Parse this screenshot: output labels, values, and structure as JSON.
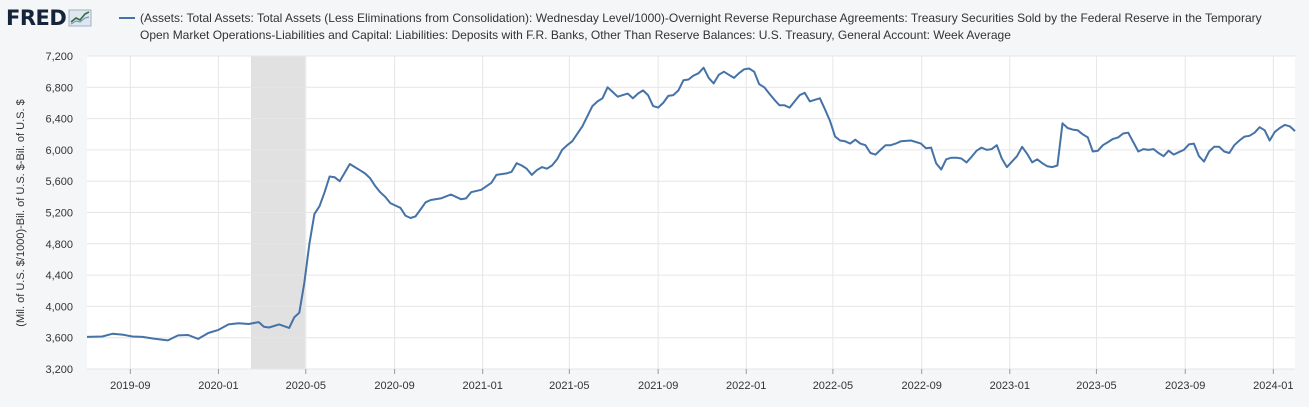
{
  "app": {
    "logo_text": "FRED"
  },
  "chart_data": {
    "type": "line",
    "title": "",
    "xlabel": "",
    "ylabel": "(Mil. of U.S. $/1000)-Bil. of U.S. $-Bil. of U.S. $",
    "ylim": [
      3200,
      7200
    ],
    "yticks": [
      3200,
      3600,
      4000,
      4400,
      4800,
      5200,
      5600,
      6000,
      6400,
      6800,
      7200
    ],
    "ytick_labels": [
      "3,200",
      "3,600",
      "4,000",
      "4,400",
      "4,800",
      "5,200",
      "5,600",
      "6,000",
      "6,400",
      "6,800",
      "7,200"
    ],
    "xlim": [
      "2019-07-03",
      "2024-01-31"
    ],
    "xticks": [
      "2019-09-01",
      "2020-01-01",
      "2020-05-01",
      "2020-09-01",
      "2021-01-01",
      "2021-05-01",
      "2021-09-01",
      "2022-01-01",
      "2022-05-01",
      "2022-09-01",
      "2023-01-01",
      "2023-05-01",
      "2023-09-01",
      "2024-01-01"
    ],
    "xtick_labels": [
      "2019-09",
      "2020-01",
      "2020-05",
      "2020-09",
      "2021-01",
      "2021-05",
      "2021-09",
      "2022-01",
      "2022-05",
      "2022-09",
      "2023-01",
      "2023-05",
      "2023-09",
      "2024-01"
    ],
    "grid": true,
    "legend_position": "top",
    "recession_shading": {
      "start": "2020-02-15",
      "end": "2020-04-30",
      "color": "#e1e1e1"
    },
    "colors": {
      "series": "#4572a7",
      "grid": "#e6e6e6",
      "plot_bg": "#ffffff",
      "recession": "#e1e1e1"
    },
    "series": [
      {
        "name": "(Assets: Total Assets: Total Assets (Less Eliminations from Consolidation): Wednesday Level/1000)-Overnight Reverse Repurchase Agreements: Treasury Securities Sold by the Federal Reserve in the Temporary Open Market Operations-Liabilities and Capital: Liabilities: Deposits with F.R. Banks, Other Than Reserve Balances: U.S. Treasury, General Account: Week Average",
        "points": [
          [
            "2019-07-03",
            3610
          ],
          [
            "2019-07-24",
            3615
          ],
          [
            "2019-08-07",
            3650
          ],
          [
            "2019-08-21",
            3640
          ],
          [
            "2019-09-04",
            3615
          ],
          [
            "2019-09-18",
            3610
          ],
          [
            "2019-10-02",
            3590
          ],
          [
            "2019-10-16",
            3575
          ],
          [
            "2019-10-23",
            3565
          ],
          [
            "2019-11-06",
            3630
          ],
          [
            "2019-11-20",
            3635
          ],
          [
            "2019-12-04",
            3585
          ],
          [
            "2019-12-18",
            3660
          ],
          [
            "2020-01-01",
            3700
          ],
          [
            "2020-01-15",
            3770
          ],
          [
            "2020-01-29",
            3785
          ],
          [
            "2020-02-12",
            3775
          ],
          [
            "2020-02-26",
            3800
          ],
          [
            "2020-03-04",
            3740
          ],
          [
            "2020-03-11",
            3730
          ],
          [
            "2020-03-25",
            3770
          ],
          [
            "2020-04-08",
            3725
          ],
          [
            "2020-04-15",
            3860
          ],
          [
            "2020-04-22",
            3920
          ],
          [
            "2020-04-29",
            4300
          ],
          [
            "2020-05-06",
            4800
          ],
          [
            "2020-05-13",
            5180
          ],
          [
            "2020-05-20",
            5280
          ],
          [
            "2020-05-27",
            5460
          ],
          [
            "2020-06-03",
            5660
          ],
          [
            "2020-06-10",
            5650
          ],
          [
            "2020-06-17",
            5600
          ],
          [
            "2020-06-24",
            5710
          ],
          [
            "2020-07-01",
            5820
          ],
          [
            "2020-07-08",
            5780
          ],
          [
            "2020-07-15",
            5740
          ],
          [
            "2020-07-22",
            5700
          ],
          [
            "2020-07-29",
            5640
          ],
          [
            "2020-08-05",
            5540
          ],
          [
            "2020-08-12",
            5460
          ],
          [
            "2020-08-19",
            5400
          ],
          [
            "2020-08-26",
            5320
          ],
          [
            "2020-09-02",
            5290
          ],
          [
            "2020-09-09",
            5260
          ],
          [
            "2020-09-16",
            5160
          ],
          [
            "2020-09-23",
            5130
          ],
          [
            "2020-09-30",
            5150
          ],
          [
            "2020-10-07",
            5240
          ],
          [
            "2020-10-14",
            5330
          ],
          [
            "2020-10-21",
            5360
          ],
          [
            "2020-11-04",
            5380
          ],
          [
            "2020-11-18",
            5430
          ],
          [
            "2020-12-02",
            5370
          ],
          [
            "2020-12-09",
            5380
          ],
          [
            "2020-12-16",
            5460
          ],
          [
            "2020-12-30",
            5490
          ],
          [
            "2021-01-13",
            5580
          ],
          [
            "2021-01-20",
            5680
          ],
          [
            "2021-02-03",
            5700
          ],
          [
            "2021-02-10",
            5720
          ],
          [
            "2021-02-17",
            5830
          ],
          [
            "2021-02-24",
            5800
          ],
          [
            "2021-03-03",
            5760
          ],
          [
            "2021-03-10",
            5680
          ],
          [
            "2021-03-17",
            5740
          ],
          [
            "2021-03-24",
            5780
          ],
          [
            "2021-03-31",
            5760
          ],
          [
            "2021-04-07",
            5800
          ],
          [
            "2021-04-14",
            5880
          ],
          [
            "2021-04-21",
            6000
          ],
          [
            "2021-04-28",
            6060
          ],
          [
            "2021-05-05",
            6110
          ],
          [
            "2021-05-19",
            6300
          ],
          [
            "2021-06-02",
            6560
          ],
          [
            "2021-06-09",
            6620
          ],
          [
            "2021-06-16",
            6660
          ],
          [
            "2021-06-23",
            6800
          ],
          [
            "2021-06-30",
            6740
          ],
          [
            "2021-07-07",
            6680
          ],
          [
            "2021-07-14",
            6700
          ],
          [
            "2021-07-21",
            6720
          ],
          [
            "2021-07-28",
            6660
          ],
          [
            "2021-08-04",
            6720
          ],
          [
            "2021-08-11",
            6760
          ],
          [
            "2021-08-18",
            6700
          ],
          [
            "2021-08-25",
            6560
          ],
          [
            "2021-09-01",
            6540
          ],
          [
            "2021-09-08",
            6600
          ],
          [
            "2021-09-15",
            6690
          ],
          [
            "2021-09-22",
            6700
          ],
          [
            "2021-09-29",
            6760
          ],
          [
            "2021-10-06",
            6890
          ],
          [
            "2021-10-13",
            6900
          ],
          [
            "2021-10-20",
            6950
          ],
          [
            "2021-10-27",
            6980
          ],
          [
            "2021-11-03",
            7050
          ],
          [
            "2021-11-10",
            6920
          ],
          [
            "2021-11-17",
            6850
          ],
          [
            "2021-11-24",
            6960
          ],
          [
            "2021-12-01",
            7000
          ],
          [
            "2021-12-08",
            6960
          ],
          [
            "2021-12-15",
            6920
          ],
          [
            "2021-12-22",
            6980
          ],
          [
            "2021-12-29",
            7030
          ],
          [
            "2022-01-05",
            7040
          ],
          [
            "2022-01-12",
            7000
          ],
          [
            "2022-01-19",
            6840
          ],
          [
            "2022-01-26",
            6800
          ],
          [
            "2022-02-02",
            6720
          ],
          [
            "2022-02-09",
            6640
          ],
          [
            "2022-02-16",
            6570
          ],
          [
            "2022-02-23",
            6570
          ],
          [
            "2022-03-02",
            6540
          ],
          [
            "2022-03-09",
            6620
          ],
          [
            "2022-03-16",
            6700
          ],
          [
            "2022-03-23",
            6730
          ],
          [
            "2022-03-30",
            6620
          ],
          [
            "2022-04-06",
            6640
          ],
          [
            "2022-04-13",
            6660
          ],
          [
            "2022-04-20",
            6520
          ],
          [
            "2022-04-27",
            6370
          ],
          [
            "2022-05-04",
            6170
          ],
          [
            "2022-05-11",
            6120
          ],
          [
            "2022-05-18",
            6110
          ],
          [
            "2022-05-25",
            6080
          ],
          [
            "2022-06-01",
            6130
          ],
          [
            "2022-06-08",
            6080
          ],
          [
            "2022-06-15",
            6060
          ],
          [
            "2022-06-22",
            5960
          ],
          [
            "2022-06-29",
            5940
          ],
          [
            "2022-07-06",
            6000
          ],
          [
            "2022-07-13",
            6060
          ],
          [
            "2022-07-20",
            6060
          ],
          [
            "2022-07-27",
            6080
          ],
          [
            "2022-08-03",
            6110
          ],
          [
            "2022-08-17",
            6120
          ],
          [
            "2022-08-31",
            6080
          ],
          [
            "2022-09-07",
            6020
          ],
          [
            "2022-09-14",
            6030
          ],
          [
            "2022-09-21",
            5830
          ],
          [
            "2022-09-28",
            5750
          ],
          [
            "2022-10-05",
            5880
          ],
          [
            "2022-10-12",
            5900
          ],
          [
            "2022-10-19",
            5900
          ],
          [
            "2022-10-26",
            5890
          ],
          [
            "2022-11-02",
            5840
          ],
          [
            "2022-11-09",
            5910
          ],
          [
            "2022-11-16",
            5990
          ],
          [
            "2022-11-23",
            6030
          ],
          [
            "2022-11-30",
            6000
          ],
          [
            "2022-12-07",
            6010
          ],
          [
            "2022-12-14",
            6060
          ],
          [
            "2022-12-21",
            5890
          ],
          [
            "2022-12-28",
            5780
          ],
          [
            "2023-01-04",
            5850
          ],
          [
            "2023-01-11",
            5920
          ],
          [
            "2023-01-18",
            6040
          ],
          [
            "2023-01-25",
            5950
          ],
          [
            "2023-02-01",
            5840
          ],
          [
            "2023-02-08",
            5880
          ],
          [
            "2023-02-15",
            5830
          ],
          [
            "2023-02-22",
            5790
          ],
          [
            "2023-03-01",
            5780
          ],
          [
            "2023-03-08",
            5800
          ],
          [
            "2023-03-15",
            6340
          ],
          [
            "2023-03-22",
            6280
          ],
          [
            "2023-03-29",
            6260
          ],
          [
            "2023-04-05",
            6250
          ],
          [
            "2023-04-12",
            6200
          ],
          [
            "2023-04-19",
            6160
          ],
          [
            "2023-04-26",
            5980
          ],
          [
            "2023-05-03",
            5990
          ],
          [
            "2023-05-10",
            6060
          ],
          [
            "2023-05-17",
            6100
          ],
          [
            "2023-05-24",
            6140
          ],
          [
            "2023-05-31",
            6160
          ],
          [
            "2023-06-07",
            6210
          ],
          [
            "2023-06-14",
            6220
          ],
          [
            "2023-06-21",
            6100
          ],
          [
            "2023-06-28",
            5980
          ],
          [
            "2023-07-05",
            6010
          ],
          [
            "2023-07-12",
            6000
          ],
          [
            "2023-07-19",
            6010
          ],
          [
            "2023-07-26",
            5960
          ],
          [
            "2023-08-02",
            5920
          ],
          [
            "2023-08-09",
            5990
          ],
          [
            "2023-08-16",
            5940
          ],
          [
            "2023-08-23",
            5970
          ],
          [
            "2023-08-30",
            6000
          ],
          [
            "2023-09-06",
            6070
          ],
          [
            "2023-09-13",
            6080
          ],
          [
            "2023-09-20",
            5920
          ],
          [
            "2023-09-27",
            5850
          ],
          [
            "2023-10-04",
            5980
          ],
          [
            "2023-10-11",
            6040
          ],
          [
            "2023-10-18",
            6040
          ],
          [
            "2023-10-25",
            5980
          ],
          [
            "2023-11-01",
            5960
          ],
          [
            "2023-11-08",
            6060
          ],
          [
            "2023-11-15",
            6120
          ],
          [
            "2023-11-22",
            6170
          ],
          [
            "2023-11-29",
            6180
          ],
          [
            "2023-12-06",
            6220
          ],
          [
            "2023-12-13",
            6290
          ],
          [
            "2023-12-20",
            6250
          ],
          [
            "2023-12-27",
            6120
          ],
          [
            "2024-01-03",
            6230
          ],
          [
            "2024-01-10",
            6280
          ],
          [
            "2024-01-17",
            6320
          ],
          [
            "2024-01-24",
            6300
          ],
          [
            "2024-01-31",
            6240
          ]
        ]
      }
    ]
  }
}
